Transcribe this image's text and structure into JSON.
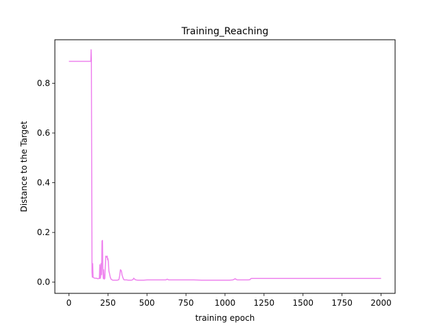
{
  "chart_data": {
    "type": "line",
    "title": "Training_Reaching",
    "xlabel": "training epoch",
    "ylabel": "Distance to the Target",
    "xlim": [
      -90,
      2090
    ],
    "ylim": [
      -0.045,
      0.975
    ],
    "xticks": [
      0,
      250,
      500,
      750,
      1000,
      1250,
      1500,
      1750,
      2000
    ],
    "yticks": [
      0.0,
      0.2,
      0.4,
      0.6,
      0.8
    ],
    "xtick_labels": [
      "0",
      "250",
      "500",
      "750",
      "1000",
      "1250",
      "1500",
      "1750",
      "2000"
    ],
    "ytick_labels": [
      "0.0",
      "0.2",
      "0.4",
      "0.6",
      "0.8"
    ],
    "grid": false,
    "series": [
      {
        "color": "#ee82ee",
        "x": [
          0,
          140,
          142,
          144,
          146,
          148,
          150,
          152,
          155,
          158,
          165,
          175,
          185,
          195,
          198,
          200,
          203,
          206,
          209,
          212,
          215,
          217,
          220,
          222,
          224,
          226,
          228,
          230,
          233,
          236,
          240,
          245,
          248,
          250,
          253,
          256,
          260,
          265,
          270,
          275,
          280,
          290,
          300,
          310,
          320,
          325,
          330,
          335,
          338,
          340,
          345,
          350,
          355,
          360,
          370,
          380,
          390,
          400,
          410,
          415,
          420,
          425,
          430,
          440,
          460,
          480,
          500,
          520,
          540,
          560,
          580,
          600,
          620,
          630,
          640,
          660,
          680,
          700,
          750,
          800,
          850,
          900,
          950,
          1000,
          1030,
          1050,
          1060,
          1065,
          1070,
          1075,
          1080,
          1090,
          1100,
          1120,
          1140,
          1150,
          1160,
          1165,
          1170,
          1200,
          1300,
          1400,
          1500,
          1600,
          1700,
          1800,
          1900,
          2000
        ],
        "y": [
          0.888,
          0.888,
          0.935,
          0.9,
          0.45,
          0.04,
          0.02,
          0.075,
          0.02,
          0.018,
          0.016,
          0.016,
          0.014,
          0.015,
          0.07,
          0.015,
          0.02,
          0.075,
          0.03,
          0.165,
          0.168,
          0.06,
          0.015,
          0.05,
          0.03,
          0.012,
          0.02,
          0.015,
          0.06,
          0.105,
          0.1,
          0.105,
          0.09,
          0.095,
          0.08,
          0.045,
          0.035,
          0.02,
          0.012,
          0.01,
          0.008,
          0.008,
          0.008,
          0.008,
          0.01,
          0.025,
          0.05,
          0.047,
          0.04,
          0.03,
          0.02,
          0.012,
          0.009,
          0.009,
          0.009,
          0.008,
          0.008,
          0.008,
          0.01,
          0.016,
          0.013,
          0.01,
          0.009,
          0.008,
          0.008,
          0.008,
          0.009,
          0.009,
          0.009,
          0.009,
          0.009,
          0.009,
          0.009,
          0.012,
          0.009,
          0.009,
          0.009,
          0.009,
          0.009,
          0.009,
          0.008,
          0.008,
          0.008,
          0.008,
          0.008,
          0.009,
          0.012,
          0.014,
          0.012,
          0.01,
          0.009,
          0.009,
          0.009,
          0.009,
          0.009,
          0.009,
          0.01,
          0.014,
          0.015,
          0.015,
          0.015,
          0.015,
          0.015,
          0.015,
          0.015,
          0.015,
          0.015,
          0.015
        ]
      }
    ]
  }
}
